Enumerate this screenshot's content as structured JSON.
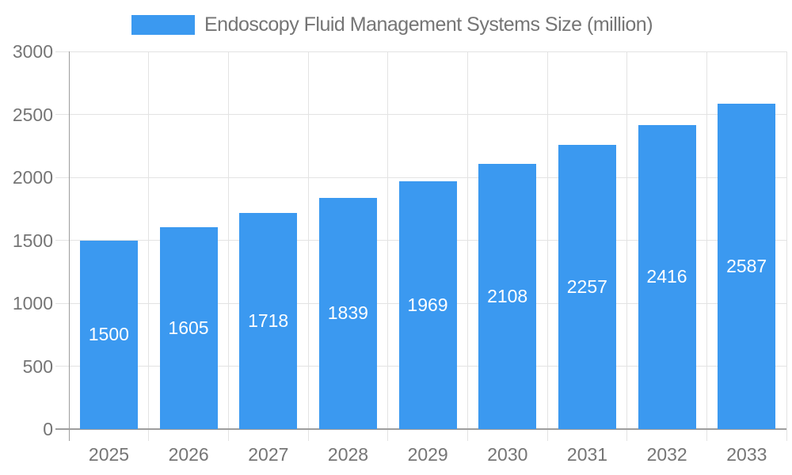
{
  "chart_data": {
    "type": "bar",
    "title": "Endoscopy Fluid Management Systems Size (million)",
    "categories": [
      "2025",
      "2026",
      "2027",
      "2028",
      "2029",
      "2030",
      "2031",
      "2032",
      "2033"
    ],
    "values": [
      1500,
      1605,
      1718,
      1839,
      1969,
      2108,
      2257,
      2416,
      2587
    ],
    "series": [
      {
        "name": "Endoscopy Fluid Management Systems Size (million)",
        "values": [
          1500,
          1605,
          1718,
          1839,
          1969,
          2108,
          2257,
          2416,
          2587
        ]
      }
    ],
    "xlabel": "",
    "ylabel": "",
    "ylim": [
      0,
      3000
    ],
    "yticks": [
      0,
      500,
      1000,
      1500,
      2000,
      2500,
      3000
    ],
    "grid": true,
    "legend_position": "top",
    "value_label_position": "inside-center",
    "colors": {
      "bar": "#3B99F0",
      "text": "#757575",
      "value_label": "#ffffff",
      "gridline": "#e3e3e3",
      "axis": "#9e9e9e",
      "background": "#ffffff"
    }
  }
}
